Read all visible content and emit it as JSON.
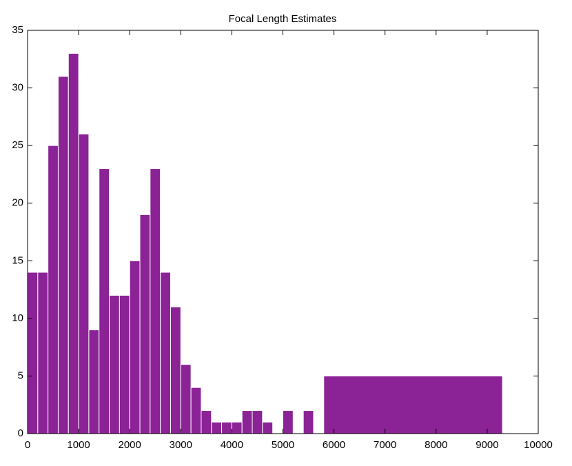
{
  "chart_data": {
    "type": "histogram",
    "title": "Focal Length Estimates",
    "bins": [
      0,
      200,
      400,
      600,
      800,
      1000,
      1200,
      1400,
      1600,
      1800,
      2000,
      2200,
      2400,
      2600,
      2800,
      3000,
      3200,
      3400,
      3600,
      3800,
      4000,
      4200,
      4400,
      4600,
      4800,
      5000,
      5200,
      5400,
      5600,
      5800,
      9300,
      10000
    ],
    "values": [
      14,
      14,
      25,
      31,
      33,
      26,
      9,
      23,
      12,
      12,
      15,
      19,
      23,
      14,
      11,
      6,
      4,
      2,
      1,
      1,
      1,
      2,
      2,
      1,
      0,
      2,
      0,
      2,
      0,
      5,
      0
    ],
    "color": "#8b2296",
    "xlim": [
      0,
      10000
    ],
    "xticks": [
      0,
      1000,
      2000,
      3000,
      4000,
      5000,
      6000,
      7000,
      8000,
      9000,
      10000
    ],
    "ylim": [
      0,
      35
    ],
    "yticks": [
      0,
      5,
      10,
      15,
      20,
      25,
      30,
      35
    ],
    "grid": false
  }
}
